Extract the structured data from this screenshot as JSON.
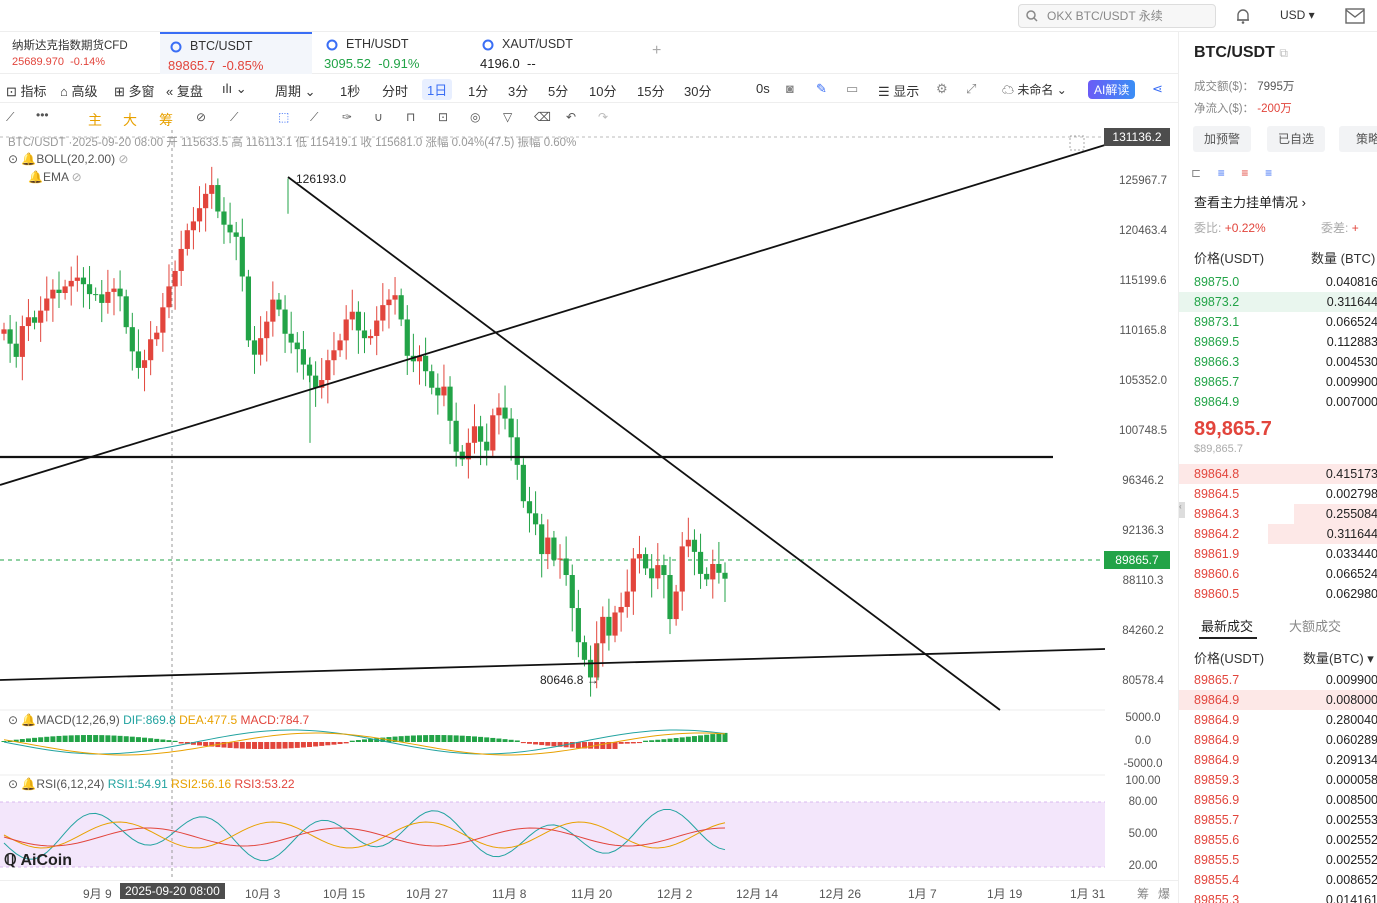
{
  "search": {
    "placeholder": "OKX BTC/USDT 永续"
  },
  "currency": "USD",
  "tabs": [
    {
      "name": "纳斯达克指数期货CFD",
      "price": "25689.970",
      "change": "-0.14%",
      "color": "red"
    },
    {
      "name": "BTC/USDT",
      "price": "89865.7",
      "change": "-0.85%",
      "color": "red"
    },
    {
      "name": "ETH/USDT",
      "price": "3095.52",
      "change": "-0.91%",
      "color": "green"
    },
    {
      "name": "XAUT/USDT",
      "price": "4196.0",
      "change": "--",
      "color": "black"
    }
  ],
  "toolbar": {
    "indicator": "指标",
    "advanced": "高级",
    "multiwin": "多窗",
    "replay": "复盘",
    "period": "周期",
    "intervals": [
      "1秒",
      "分时",
      "1日",
      "1分",
      "3分",
      "5分",
      "10分",
      "15分",
      "30分"
    ],
    "selected": "1日",
    "zero": "0s",
    "display": "显示",
    "unnamed": "未命名",
    "ai": "AI解读"
  },
  "drawbar": {
    "labels": [
      "主",
      "大",
      "筹"
    ]
  },
  "legend": {
    "ohlc": "BTC/USDT ·2025-09-20 08:00  开 115633.5  高 116113.1  低 115419.1  收 115681.0  涨幅 0.04%(47.5)  振幅 0.60%",
    "boll": "BOLL(20,2.00)",
    "ema": "EMA",
    "macd": {
      "name": "MACD(12,26,9)",
      "dif": "DIF:869.8",
      "dea": "DEA:477.5",
      "macd": "MACD:784.7"
    },
    "rsi": {
      "name": "RSI(6,12,24)",
      "r1": "RSI1:54.91",
      "r2": "RSI2:56.16",
      "r3": "RSI3:53.22"
    }
  },
  "yaxis": [
    "125967.7",
    "120463.4",
    "115199.6",
    "110165.8",
    "105352.0",
    "100748.5",
    "96346.2",
    "92136.3",
    "88110.3",
    "84260.2",
    "80578.4"
  ],
  "ytop": "131136.2",
  "current_price": "89865.7",
  "annotations": {
    "high": "126193.0",
    "low": "80646.8"
  },
  "macd_axis": [
    "5000.0",
    "0.0",
    "-5000.0"
  ],
  "rsi_axis": [
    "100.00",
    "80.00",
    "50.00",
    "20.00"
  ],
  "xaxis": [
    "9月 9",
    "2025-09-20 08:00",
    "10月 3",
    "10月 15",
    "10月 27",
    "11月 8",
    "11月 20",
    "12月 2",
    "12月 14",
    "12月 26",
    "1月 7",
    "1月 19",
    "1月 31"
  ],
  "xaxis_right": [
    "筹",
    "爆"
  ],
  "logo": "AiCoin",
  "panel": {
    "symbol": "BTC/USDT",
    "volume_label": "成交额($)：",
    "volume": "7995万",
    "inflow_label": "净流入($)：",
    "inflow": "-200万",
    "buttons": [
      "加预警",
      "已自选",
      "策略"
    ],
    "depth_link": "查看主力挂单情况",
    "ratio_label": "委比:",
    "ratio": "+0.22%",
    "diff_label": "委差:",
    "diff": "+",
    "headers": [
      "价格(USDT)",
      "数量 (BTC)"
    ],
    "asks": [
      {
        "p": "89875.0",
        "q": "0.040816"
      },
      {
        "p": "89873.2",
        "q": "0.311644"
      },
      {
        "p": "89873.1",
        "q": "0.066524"
      },
      {
        "p": "89869.5",
        "q": "0.112883"
      },
      {
        "p": "89866.3",
        "q": "0.004530"
      },
      {
        "p": "89865.7",
        "q": "0.009900"
      },
      {
        "p": "89864.9",
        "q": "0.007000"
      }
    ],
    "last": "89,865.7",
    "last_usd": "$89,865.7",
    "bids": [
      {
        "p": "89864.8",
        "q": "0.415173"
      },
      {
        "p": "89864.5",
        "q": "0.002798"
      },
      {
        "p": "89864.3",
        "q": "0.255084"
      },
      {
        "p": "89864.2",
        "q": "0.311644"
      },
      {
        "p": "89861.9",
        "q": "0.033440"
      },
      {
        "p": "89860.6",
        "q": "0.066524"
      },
      {
        "p": "89860.5",
        "q": "0.062980"
      }
    ],
    "trade_tabs": [
      "最新成交",
      "大额成交"
    ],
    "trade_headers": [
      "价格(USDT)",
      "数量(BTC)"
    ],
    "trades": [
      {
        "p": "89865.7",
        "q": "0.009900"
      },
      {
        "p": "89864.9",
        "q": "0.008000"
      },
      {
        "p": "89864.9",
        "q": "0.280040"
      },
      {
        "p": "89864.9",
        "q": "0.060289"
      },
      {
        "p": "89864.9",
        "q": "0.209134"
      },
      {
        "p": "89859.3",
        "q": "0.000058"
      },
      {
        "p": "89856.9",
        "q": "0.008500"
      },
      {
        "p": "89855.7",
        "q": "0.002553"
      },
      {
        "p": "89855.6",
        "q": "0.002552"
      },
      {
        "p": "89855.5",
        "q": "0.002552"
      },
      {
        "p": "89855.4",
        "q": "0.008652"
      },
      {
        "p": "89855.3",
        "q": "0.014161"
      }
    ]
  },
  "colors": {
    "up": "#e2453c",
    "down": "#22a347",
    "accent": "#3a6ef5"
  }
}
